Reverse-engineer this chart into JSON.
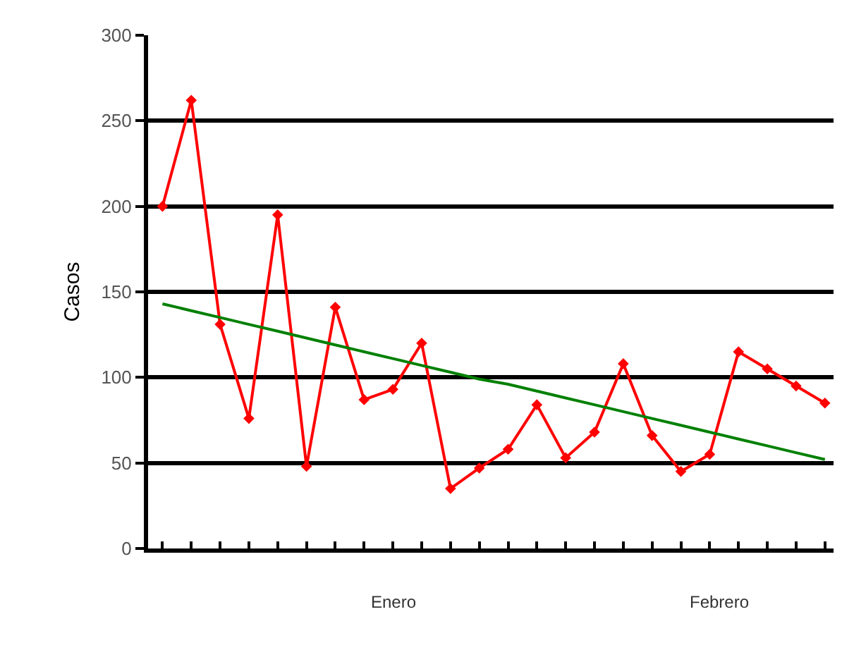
{
  "chart_data": {
    "type": "line",
    "ylabel": "Casos",
    "categories": [
      null,
      null,
      null,
      null,
      null,
      null,
      null,
      null,
      null,
      null,
      null,
      null,
      null,
      null,
      null,
      null,
      null,
      null,
      null,
      null,
      null,
      null,
      null,
      null
    ],
    "series": [
      {
        "color": "#ff0000",
        "marker": "diamond",
        "values": [
          200,
          262,
          131,
          76,
          195,
          48,
          141,
          87,
          93,
          120,
          35,
          47,
          58,
          84,
          53,
          68,
          108,
          66,
          45,
          55,
          115,
          105,
          95,
          85
        ]
      },
      {
        "color": "#008000",
        "marker": "none",
        "values": [
          143,
          139,
          135,
          131,
          127,
          123,
          119,
          115,
          111,
          107,
          103,
          99,
          96,
          92,
          88,
          84,
          80,
          76,
          72,
          68,
          64,
          60,
          56,
          52
        ]
      }
    ],
    "ylim": [
      0,
      300
    ],
    "yticks": [
      0,
      50,
      100,
      150,
      200,
      250,
      300
    ],
    "grid": "y",
    "tick_labels": "y",
    "line_style": "solid",
    "annotations": [
      "Enero",
      "Febrero"
    ]
  }
}
